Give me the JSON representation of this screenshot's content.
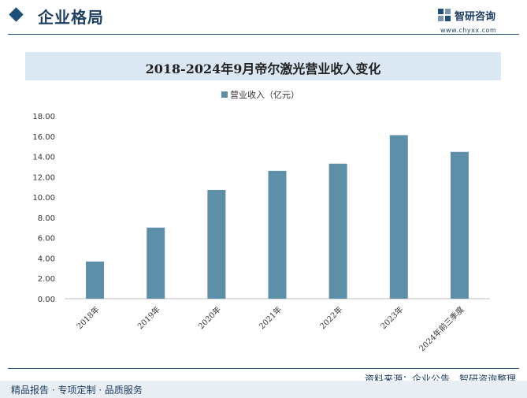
{
  "header": {
    "section_title": "企业格局",
    "logo_name": "智研咨询",
    "logo_url": "www.chyxx.com"
  },
  "footer": {
    "source": "资料来源：企业公告、智研咨询整理",
    "tagline": "精品报告 · 专项定制 · 品质服务"
  },
  "colors": {
    "bar": "#5e8fa8",
    "header_accent": "#1f4e79",
    "title_band": "#dbe8f3"
  },
  "chart_data": {
    "type": "bar",
    "title": "2018-2024年9月帝尔激光营业收入变化",
    "categories": [
      "2018年",
      "2019年",
      "2020年",
      "2021年",
      "2022年",
      "2023年",
      "2024年前三季度"
    ],
    "series": [
      {
        "name": "营业收入（亿元）",
        "values": [
          3.66,
          7.0,
          10.71,
          12.58,
          13.29,
          16.1,
          14.45
        ]
      }
    ],
    "ylim": [
      0,
      18
    ],
    "yticks": [
      "0.00",
      "2.00",
      "4.00",
      "6.00",
      "8.00",
      "10.00",
      "12.00",
      "14.00",
      "16.00",
      "18.00"
    ],
    "legend": "top-center",
    "grid": false
  }
}
